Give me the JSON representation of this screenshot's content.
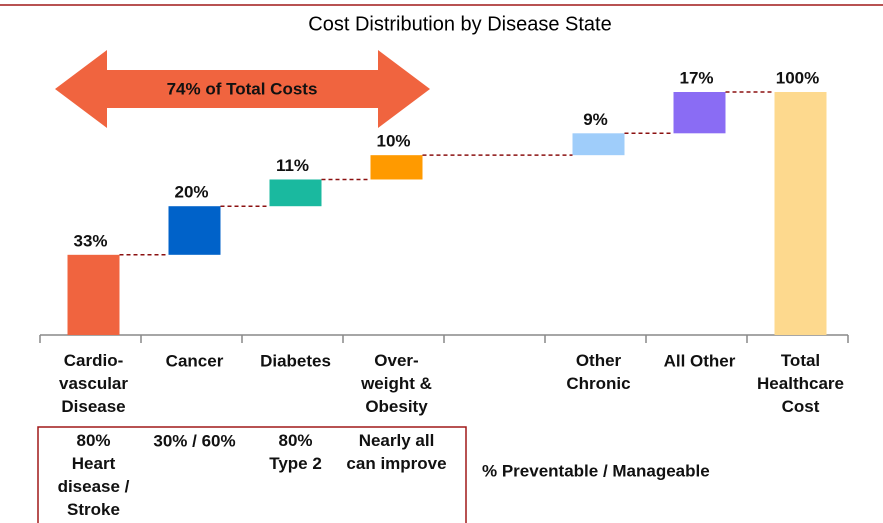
{
  "chart_data": {
    "type": "waterfall",
    "title": "Cost Distribution by Disease State",
    "categories": [
      "Cardio-\nvascular\nDisease",
      "Cancer",
      "Diabetes",
      "Over-\nweight &\nObesity",
      null,
      "Other\nChronic",
      "All Other",
      "Total\nHealthcare\nCost"
    ],
    "values": [
      33,
      20,
      11,
      10,
      null,
      9,
      17,
      100
    ],
    "value_labels": [
      "33%",
      "20%",
      "11%",
      "10%",
      null,
      "9%",
      "17%",
      "100%"
    ],
    "colors": [
      "#f0643f",
      "#0062c9",
      "#1ab99f",
      "#ff9a00",
      null,
      "#9fcdfa",
      "#8a6cf4",
      "#fdd98e"
    ],
    "total_last": true,
    "ylim": [
      0,
      100
    ],
    "annotation": "74% of Total Costs",
    "preventable": {
      "label": "% Preventable / Manageable",
      "cells": [
        "80%\nHeart\ndisease /\nStroke",
        "30% / 60%",
        "80%\nType 2",
        "Nearly all\ncan improve"
      ]
    }
  }
}
